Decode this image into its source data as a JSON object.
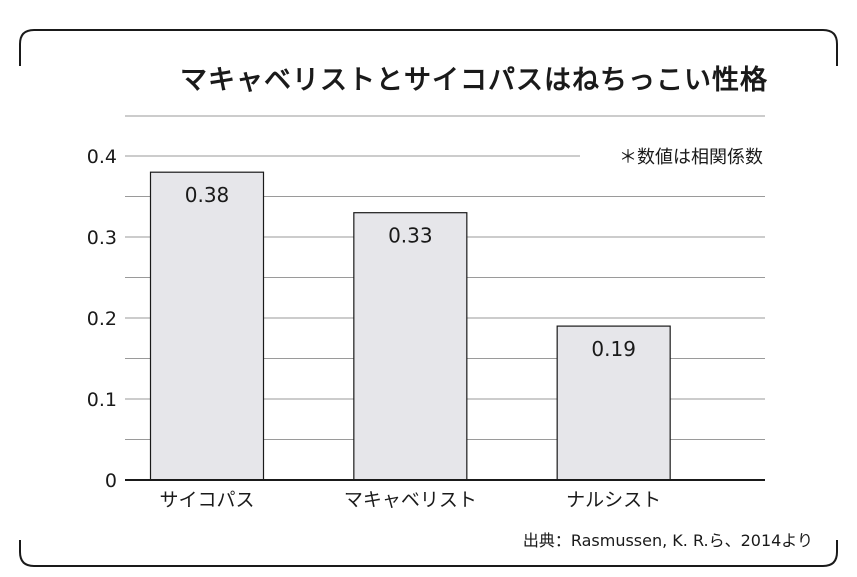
{
  "chart_data": {
    "type": "bar",
    "title": "マキャベリストとサイコパスはねちっこい性格",
    "note": "＊数値は相関係数",
    "source": "出典：Rasmussen, K. R.ら、2014より",
    "categories": [
      "サイコパス",
      "マキャベリスト",
      "ナルシスト"
    ],
    "values": [
      0.38,
      0.33,
      0.19
    ],
    "value_labels": [
      "0.38",
      "0.33",
      "0.19"
    ],
    "ylim": [
      0,
      0.4
    ],
    "yticks": [
      "0",
      "0.1",
      "0.2",
      "0.3",
      "0.4"
    ],
    "ytick_values": [
      0,
      0.1,
      0.2,
      0.3,
      0.4
    ],
    "grid": true,
    "bar_color": "#e6e6ea",
    "bar_edge_color": "#1a1a1a",
    "grid_color": "#9a9a9a"
  }
}
